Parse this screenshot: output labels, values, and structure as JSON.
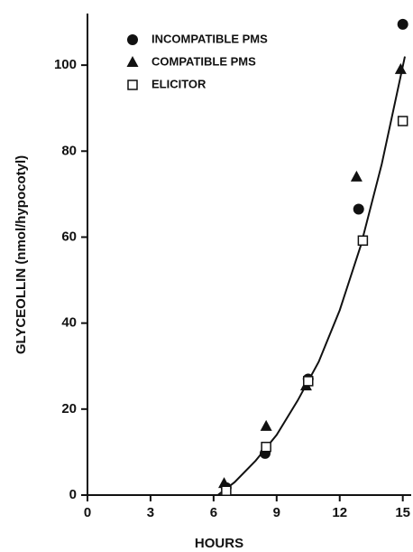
{
  "chart_data": {
    "type": "scatter",
    "x_label": "HOURS",
    "y_label": "GLYCEOLLIN (nmol/hypocotyl)",
    "xlim": [
      0,
      15.4
    ],
    "xticks": [
      0,
      3,
      6,
      9,
      12,
      15
    ],
    "ylim": [
      0,
      112
    ],
    "yticks": [
      0,
      20,
      40,
      60,
      80,
      100
    ],
    "series": [
      {
        "name": "INCOMPATIBLE PMS",
        "marker": "circle",
        "color": "#111111",
        "x": [
          6.6,
          8.45,
          10.5,
          12.9,
          15.0
        ],
        "values": [
          1.7,
          9.7,
          27,
          66.5,
          109.5
        ]
      },
      {
        "name": "COMPATIBLE PMS",
        "marker": "triangle",
        "color": "#111111",
        "x": [
          6.5,
          8.5,
          10.4,
          12.8,
          14.9
        ],
        "values": [
          2.7,
          16,
          25.4,
          74,
          99
        ]
      },
      {
        "name": "ELICITOR",
        "marker": "square-open",
        "color": "#111111",
        "x": [
          6.6,
          8.5,
          10.5,
          13.1,
          15.0
        ],
        "values": [
          1,
          11.2,
          26.5,
          59.2,
          87
        ]
      }
    ],
    "fit": {
      "x": [
        6.2,
        7,
        8,
        9,
        10,
        11,
        12,
        13,
        14,
        15.1
      ],
      "values": [
        0,
        3,
        8,
        14,
        22,
        31,
        43,
        58,
        77,
        102
      ]
    }
  }
}
